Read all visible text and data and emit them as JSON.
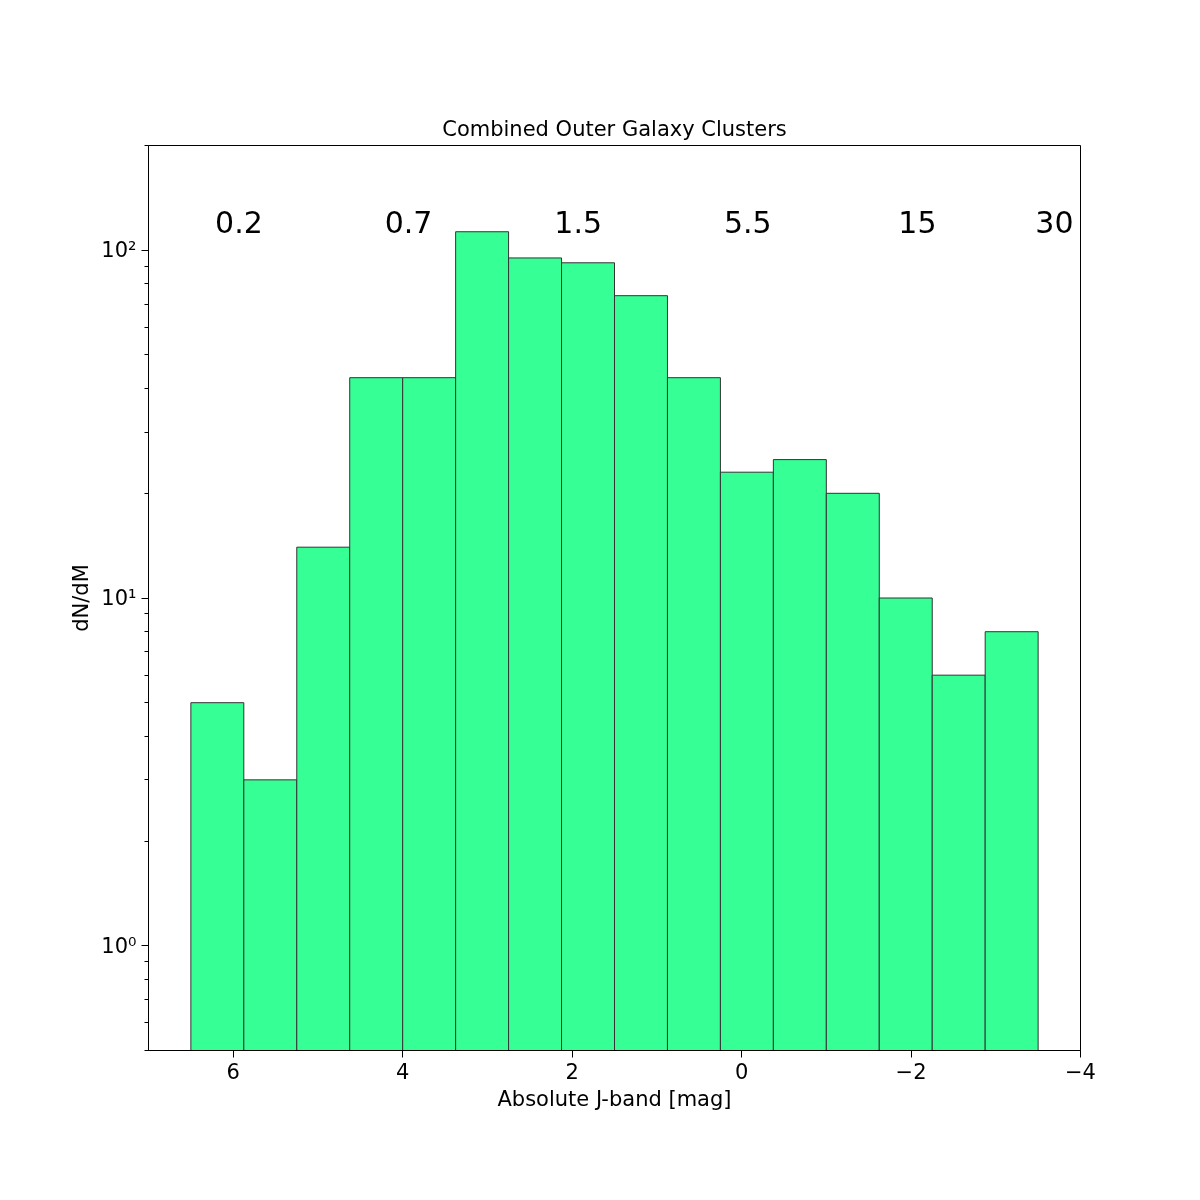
{
  "chart_data": {
    "type": "histogram",
    "title": "Combined Outer Galaxy Clusters",
    "xlabel": "Absolute J-band [mag]",
    "ylabel": "dN/dM",
    "bins": [
      6.5,
      5.875,
      5.25,
      4.625,
      4.0,
      3.375,
      2.75,
      2.125,
      1.5,
      0.875,
      0.25,
      -0.375,
      -1.0,
      -1.625,
      -2.25,
      -2.875,
      -3.5
    ],
    "values": [
      5,
      3,
      14,
      43,
      43,
      113,
      95,
      92,
      74,
      43,
      23,
      25,
      20,
      10,
      6,
      8
    ],
    "color": "#36ff96",
    "log": "y",
    "xlim": [
      7,
      -4
    ],
    "ylim": [
      0.5,
      200
    ],
    "xticks": [
      {
        "value": 6,
        "label": "6"
      },
      {
        "value": 4,
        "label": "4"
      },
      {
        "value": 2,
        "label": "2"
      },
      {
        "value": 0,
        "label": "0"
      },
      {
        "value": -2,
        "label": "−2"
      },
      {
        "value": -4,
        "label": "−4"
      }
    ],
    "yticks": [
      {
        "value": 1,
        "label": "10⁰"
      },
      {
        "value": 10,
        "label": "10¹"
      },
      {
        "value": 100,
        "label": "10²"
      }
    ],
    "annotations": [
      "0.2",
      "0.7",
      "1.5",
      "5.5",
      "15",
      "30"
    ],
    "grid": false
  }
}
